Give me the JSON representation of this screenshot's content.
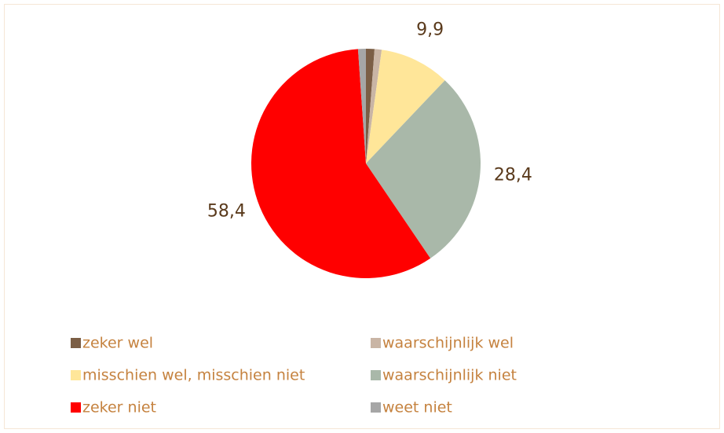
{
  "chart_data": {
    "type": "pie",
    "categories": [
      "zeker wel",
      "waarschijnlijk wel",
      "misschien wel, misschien niet",
      "waarschijnlijk niet",
      "zeker niet",
      "weet niet"
    ],
    "values": [
      1.2,
      1.0,
      9.9,
      28.4,
      58.4,
      1.1
    ],
    "value_labels": [
      null,
      null,
      "9,9",
      "28,4",
      "58,4",
      null
    ],
    "colors": [
      "#7b5e45",
      "#c9b5a5",
      "#ffe699",
      "#a9b8a9",
      "#ff0000",
      "#a6a6a6"
    ],
    "legend": "bottom"
  }
}
